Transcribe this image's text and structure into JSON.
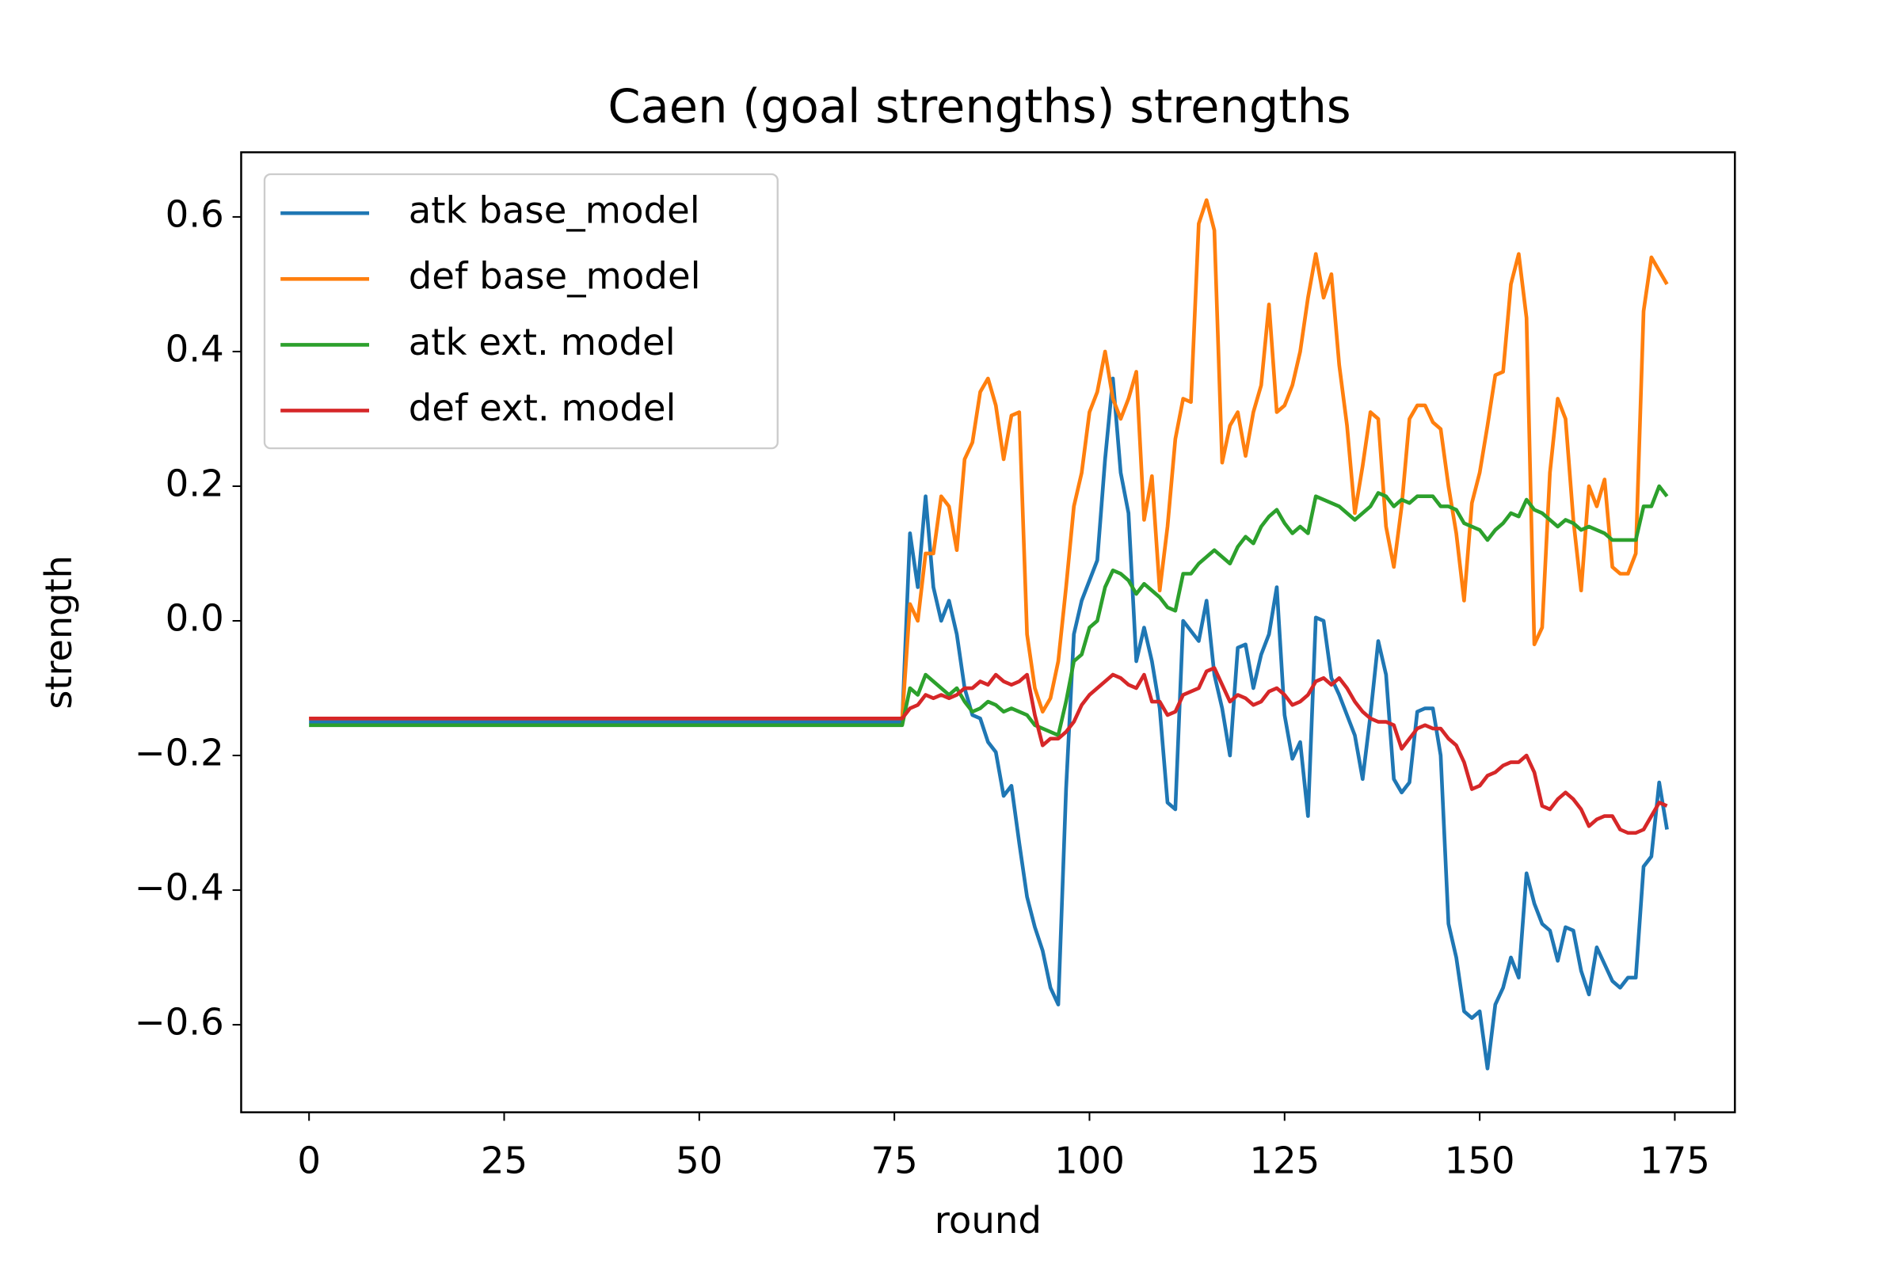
{
  "chart_data": {
    "type": "line",
    "title": "Caen (goal strengths) strengths",
    "xlabel": "round",
    "ylabel": "strength",
    "x": [
      0,
      1,
      2,
      3,
      4,
      5,
      6,
      7,
      8,
      9,
      10,
      11,
      12,
      13,
      14,
      15,
      16,
      17,
      18,
      19,
      20,
      21,
      22,
      23,
      24,
      25,
      26,
      27,
      28,
      29,
      30,
      31,
      32,
      33,
      34,
      35,
      36,
      37,
      38,
      39,
      40,
      41,
      42,
      43,
      44,
      45,
      46,
      47,
      48,
      49,
      50,
      51,
      52,
      53,
      54,
      55,
      56,
      57,
      58,
      59,
      60,
      61,
      62,
      63,
      64,
      65,
      66,
      67,
      68,
      69,
      70,
      71,
      72,
      73,
      74,
      75,
      76,
      77,
      78,
      79,
      80,
      81,
      82,
      83,
      84,
      85,
      86,
      87,
      88,
      89,
      90,
      91,
      92,
      93,
      94,
      95,
      96,
      97,
      98,
      99,
      100,
      101,
      102,
      103,
      104,
      105,
      106,
      107,
      108,
      109,
      110,
      111,
      112,
      113,
      114,
      115,
      116,
      117,
      118,
      119,
      120,
      121,
      122,
      123,
      124,
      125,
      126,
      127,
      128,
      129,
      130,
      131,
      132,
      133,
      134,
      135,
      136,
      137,
      138,
      139,
      140,
      141,
      142,
      143,
      144,
      145,
      146,
      147,
      148,
      149,
      150,
      151,
      152,
      153,
      154,
      155,
      156,
      157,
      158,
      159,
      160,
      161,
      162,
      163,
      164,
      165,
      166,
      167,
      168,
      169,
      170,
      171,
      172,
      173,
      174
    ],
    "series": [
      {
        "name": "atk base_model",
        "color": "#1f77b4",
        "values": [
          -0.15,
          -0.15,
          -0.15,
          -0.15,
          -0.15,
          -0.15,
          -0.15,
          -0.15,
          -0.15,
          -0.15,
          -0.15,
          -0.15,
          -0.15,
          -0.15,
          -0.15,
          -0.15,
          -0.15,
          -0.15,
          -0.15,
          -0.15,
          -0.15,
          -0.15,
          -0.15,
          -0.15,
          -0.15,
          -0.15,
          -0.15,
          -0.15,
          -0.15,
          -0.15,
          -0.15,
          -0.15,
          -0.15,
          -0.15,
          -0.15,
          -0.15,
          -0.15,
          -0.15,
          -0.15,
          -0.15,
          -0.15,
          -0.15,
          -0.15,
          -0.15,
          -0.15,
          -0.15,
          -0.15,
          -0.15,
          -0.15,
          -0.15,
          -0.15,
          -0.15,
          -0.15,
          -0.15,
          -0.15,
          -0.15,
          -0.15,
          -0.15,
          -0.15,
          -0.15,
          -0.15,
          -0.15,
          -0.15,
          -0.15,
          -0.15,
          -0.15,
          -0.15,
          -0.15,
          -0.15,
          -0.15,
          -0.15,
          -0.15,
          -0.15,
          -0.15,
          -0.15,
          -0.15,
          -0.15,
          0.13,
          0.05,
          0.185,
          0.05,
          0.0,
          0.03,
          -0.02,
          -0.1,
          -0.14,
          -0.145,
          -0.18,
          -0.195,
          -0.26,
          -0.245,
          -0.33,
          -0.41,
          -0.455,
          -0.49,
          -0.545,
          -0.57,
          -0.25,
          -0.02,
          0.03,
          0.06,
          0.09,
          0.24,
          0.36,
          0.22,
          0.16,
          -0.06,
          -0.01,
          -0.06,
          -0.13,
          -0.27,
          -0.28,
          0.0,
          -0.015,
          -0.03,
          0.03,
          -0.08,
          -0.13,
          -0.2,
          -0.04,
          -0.035,
          -0.1,
          -0.05,
          -0.02,
          0.05,
          -0.14,
          -0.205,
          -0.18,
          -0.29,
          0.005,
          0.0,
          -0.085,
          -0.11,
          -0.14,
          -0.17,
          -0.235,
          -0.14,
          -0.03,
          -0.08,
          -0.235,
          -0.255,
          -0.24,
          -0.135,
          -0.13,
          -0.13,
          -0.2,
          -0.45,
          -0.5,
          -0.58,
          -0.59,
          -0.58,
          -0.665,
          -0.57,
          -0.545,
          -0.5,
          -0.53,
          -0.375,
          -0.42,
          -0.45,
          -0.46,
          -0.505,
          -0.455,
          -0.46,
          -0.52,
          -0.555,
          -0.485,
          -0.51,
          -0.535,
          -0.545,
          -0.53,
          -0.53,
          -0.365,
          -0.35,
          -0.24,
          -0.31
        ]
      },
      {
        "name": "def base_model",
        "color": "#ff7f0e",
        "values": [
          -0.145,
          -0.145,
          -0.145,
          -0.145,
          -0.145,
          -0.145,
          -0.145,
          -0.145,
          -0.145,
          -0.145,
          -0.145,
          -0.145,
          -0.145,
          -0.145,
          -0.145,
          -0.145,
          -0.145,
          -0.145,
          -0.145,
          -0.145,
          -0.145,
          -0.145,
          -0.145,
          -0.145,
          -0.145,
          -0.145,
          -0.145,
          -0.145,
          -0.145,
          -0.145,
          -0.145,
          -0.145,
          -0.145,
          -0.145,
          -0.145,
          -0.145,
          -0.145,
          -0.145,
          -0.145,
          -0.145,
          -0.145,
          -0.145,
          -0.145,
          -0.145,
          -0.145,
          -0.145,
          -0.145,
          -0.145,
          -0.145,
          -0.145,
          -0.145,
          -0.145,
          -0.145,
          -0.145,
          -0.145,
          -0.145,
          -0.145,
          -0.145,
          -0.145,
          -0.145,
          -0.145,
          -0.145,
          -0.145,
          -0.145,
          -0.145,
          -0.145,
          -0.145,
          -0.145,
          -0.145,
          -0.145,
          -0.145,
          -0.145,
          -0.145,
          -0.145,
          -0.145,
          -0.145,
          -0.145,
          0.025,
          0.0,
          0.1,
          0.1,
          0.185,
          0.17,
          0.105,
          0.24,
          0.265,
          0.34,
          0.36,
          0.32,
          0.24,
          0.305,
          0.31,
          -0.02,
          -0.1,
          -0.135,
          -0.115,
          -0.06,
          0.05,
          0.17,
          0.22,
          0.31,
          0.34,
          0.4,
          0.33,
          0.3,
          0.33,
          0.37,
          0.15,
          0.215,
          0.045,
          0.14,
          0.27,
          0.33,
          0.325,
          0.59,
          0.625,
          0.58,
          0.235,
          0.29,
          0.31,
          0.245,
          0.31,
          0.35,
          0.47,
          0.31,
          0.32,
          0.35,
          0.4,
          0.48,
          0.545,
          0.48,
          0.515,
          0.38,
          0.29,
          0.16,
          0.23,
          0.31,
          0.3,
          0.14,
          0.08,
          0.17,
          0.3,
          0.32,
          0.32,
          0.295,
          0.285,
          0.2,
          0.13,
          0.03,
          0.175,
          0.22,
          0.29,
          0.365,
          0.37,
          0.5,
          0.545,
          0.45,
          -0.035,
          -0.01,
          0.22,
          0.33,
          0.3,
          0.15,
          0.045,
          0.2,
          0.17,
          0.21,
          0.08,
          0.07,
          0.07,
          0.1,
          0.46,
          0.54,
          0.52,
          0.5
        ]
      },
      {
        "name": "atk ext. model",
        "color": "#2ca02c",
        "values": [
          -0.155,
          -0.155,
          -0.155,
          -0.155,
          -0.155,
          -0.155,
          -0.155,
          -0.155,
          -0.155,
          -0.155,
          -0.155,
          -0.155,
          -0.155,
          -0.155,
          -0.155,
          -0.155,
          -0.155,
          -0.155,
          -0.155,
          -0.155,
          -0.155,
          -0.155,
          -0.155,
          -0.155,
          -0.155,
          -0.155,
          -0.155,
          -0.155,
          -0.155,
          -0.155,
          -0.155,
          -0.155,
          -0.155,
          -0.155,
          -0.155,
          -0.155,
          -0.155,
          -0.155,
          -0.155,
          -0.155,
          -0.155,
          -0.155,
          -0.155,
          -0.155,
          -0.155,
          -0.155,
          -0.155,
          -0.155,
          -0.155,
          -0.155,
          -0.155,
          -0.155,
          -0.155,
          -0.155,
          -0.155,
          -0.155,
          -0.155,
          -0.155,
          -0.155,
          -0.155,
          -0.155,
          -0.155,
          -0.155,
          -0.155,
          -0.155,
          -0.155,
          -0.155,
          -0.155,
          -0.155,
          -0.155,
          -0.155,
          -0.155,
          -0.155,
          -0.155,
          -0.155,
          -0.155,
          -0.155,
          -0.1,
          -0.11,
          -0.08,
          -0.09,
          -0.1,
          -0.11,
          -0.1,
          -0.12,
          -0.135,
          -0.13,
          -0.12,
          -0.125,
          -0.135,
          -0.13,
          -0.135,
          -0.14,
          -0.155,
          -0.16,
          -0.165,
          -0.17,
          -0.12,
          -0.06,
          -0.05,
          -0.01,
          0.0,
          0.05,
          0.075,
          0.07,
          0.06,
          0.04,
          0.055,
          0.045,
          0.035,
          0.02,
          0.015,
          0.07,
          0.07,
          0.085,
          0.095,
          0.105,
          0.095,
          0.085,
          0.11,
          0.125,
          0.115,
          0.14,
          0.155,
          0.165,
          0.145,
          0.13,
          0.14,
          0.13,
          0.185,
          0.18,
          0.175,
          0.17,
          0.16,
          0.15,
          0.16,
          0.17,
          0.19,
          0.185,
          0.17,
          0.18,
          0.175,
          0.185,
          0.185,
          0.185,
          0.17,
          0.17,
          0.165,
          0.145,
          0.14,
          0.135,
          0.12,
          0.135,
          0.145,
          0.16,
          0.155,
          0.18,
          0.165,
          0.16,
          0.15,
          0.14,
          0.15,
          0.145,
          0.135,
          0.14,
          0.135,
          0.13,
          0.12,
          0.12,
          0.12,
          0.12,
          0.17,
          0.17,
          0.2,
          0.185
        ]
      },
      {
        "name": "def ext. model",
        "color": "#d62728",
        "values": [
          -0.145,
          -0.145,
          -0.145,
          -0.145,
          -0.145,
          -0.145,
          -0.145,
          -0.145,
          -0.145,
          -0.145,
          -0.145,
          -0.145,
          -0.145,
          -0.145,
          -0.145,
          -0.145,
          -0.145,
          -0.145,
          -0.145,
          -0.145,
          -0.145,
          -0.145,
          -0.145,
          -0.145,
          -0.145,
          -0.145,
          -0.145,
          -0.145,
          -0.145,
          -0.145,
          -0.145,
          -0.145,
          -0.145,
          -0.145,
          -0.145,
          -0.145,
          -0.145,
          -0.145,
          -0.145,
          -0.145,
          -0.145,
          -0.145,
          -0.145,
          -0.145,
          -0.145,
          -0.145,
          -0.145,
          -0.145,
          -0.145,
          -0.145,
          -0.145,
          -0.145,
          -0.145,
          -0.145,
          -0.145,
          -0.145,
          -0.145,
          -0.145,
          -0.145,
          -0.145,
          -0.145,
          -0.145,
          -0.145,
          -0.145,
          -0.145,
          -0.145,
          -0.145,
          -0.145,
          -0.145,
          -0.145,
          -0.145,
          -0.145,
          -0.145,
          -0.145,
          -0.145,
          -0.145,
          -0.145,
          -0.13,
          -0.125,
          -0.11,
          -0.115,
          -0.11,
          -0.115,
          -0.11,
          -0.1,
          -0.1,
          -0.09,
          -0.095,
          -0.08,
          -0.09,
          -0.095,
          -0.09,
          -0.08,
          -0.14,
          -0.185,
          -0.175,
          -0.175,
          -0.165,
          -0.15,
          -0.125,
          -0.11,
          -0.1,
          -0.09,
          -0.08,
          -0.085,
          -0.095,
          -0.1,
          -0.08,
          -0.12,
          -0.12,
          -0.14,
          -0.135,
          -0.11,
          -0.105,
          -0.1,
          -0.075,
          -0.07,
          -0.095,
          -0.12,
          -0.11,
          -0.115,
          -0.125,
          -0.12,
          -0.105,
          -0.1,
          -0.11,
          -0.125,
          -0.12,
          -0.11,
          -0.09,
          -0.085,
          -0.095,
          -0.085,
          -0.1,
          -0.12,
          -0.135,
          -0.145,
          -0.15,
          -0.15,
          -0.155,
          -0.19,
          -0.175,
          -0.16,
          -0.155,
          -0.16,
          -0.16,
          -0.175,
          -0.185,
          -0.21,
          -0.25,
          -0.245,
          -0.23,
          -0.225,
          -0.215,
          -0.21,
          -0.21,
          -0.2,
          -0.225,
          -0.275,
          -0.28,
          -0.265,
          -0.255,
          -0.265,
          -0.28,
          -0.305,
          -0.295,
          -0.29,
          -0.29,
          -0.31,
          -0.315,
          -0.315,
          -0.31,
          -0.29,
          -0.27,
          -0.275
        ]
      }
    ],
    "xlim": [
      -8.7,
      182.7
    ],
    "ylim": [
      -0.73,
      0.696
    ],
    "xticks": [
      0,
      25,
      50,
      75,
      100,
      125,
      150,
      175
    ],
    "yticks": [
      {
        "value": -0.6,
        "label": "−0.6"
      },
      {
        "value": -0.4,
        "label": "−0.4"
      },
      {
        "value": -0.2,
        "label": "−0.2"
      },
      {
        "value": 0,
        "label": "0.0"
      },
      0.2,
      0.4,
      0.6
    ],
    "legend": "upper left",
    "grid": false
  }
}
